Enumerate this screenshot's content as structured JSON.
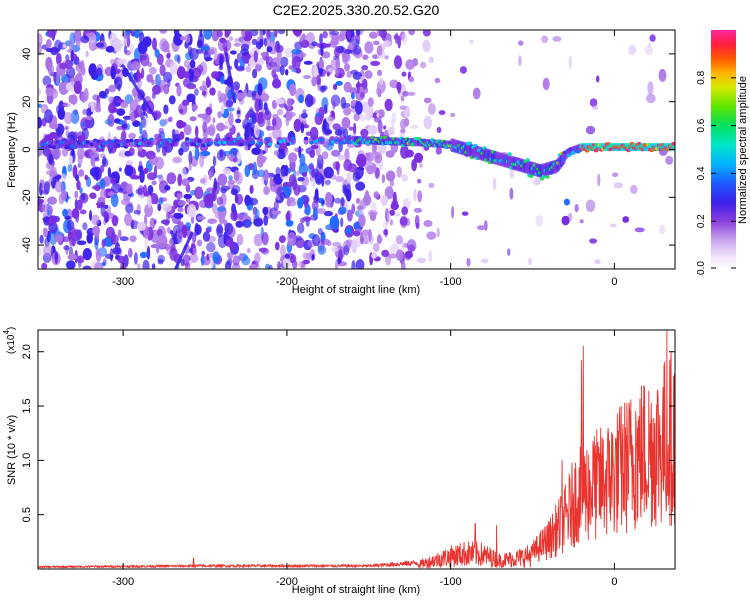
{
  "title": "C2E2.2025.330.20.52.G20",
  "chart_data": [
    {
      "type": "heatmap",
      "xlabel": "Height of straight line (km)",
      "ylabel": "Frequency (Hz)",
      "xlim": [
        -352,
        37
      ],
      "ylim": [
        -50,
        50
      ],
      "x_ticks": [
        -300,
        -200,
        -100,
        0
      ],
      "y_ticks": [
        -40,
        -20,
        0,
        20,
        40
      ],
      "colorbar": {
        "label": "Normalized spectral amplitude",
        "range": [
          0.0,
          1.0
        ],
        "ticks": [
          "0.0",
          "0.2",
          "0.4",
          "0.6",
          "0.8"
        ],
        "colormap": "rainbow"
      },
      "ridge": {
        "description_points_x": [
          -350,
          -160,
          -120,
          -100,
          -80,
          -60,
          -45,
          -35,
          -28,
          -20,
          0,
          37
        ],
        "description_points_freq": [
          2,
          4,
          3,
          2,
          -2,
          -6,
          -9,
          -7,
          -1,
          1,
          1,
          1
        ]
      }
    },
    {
      "type": "line",
      "xlabel": "Height of straight line (km)",
      "ylabel": "SNR (10 * v/v)",
      "y_multiplier": "(x10",
      "y_multiplier_exp": "4",
      "y_multiplier_close": ")",
      "xlim": [
        -352,
        37
      ],
      "ylim": [
        0,
        2.2
      ],
      "x_ticks": [
        -300,
        -200,
        -100,
        0
      ],
      "y_ticks": [
        0.5,
        1.0,
        1.5,
        2.0
      ],
      "y_tick_labels": [
        "0.5",
        "1.0",
        "1.5",
        "2.0"
      ],
      "series": [
        {
          "color": "#e8332e",
          "envelope_x": [
            -352,
            -250,
            -150,
            -120,
            -110,
            -100,
            -90,
            -80,
            -70,
            -60,
            -50,
            -40,
            -30,
            -22,
            -15,
            -5,
            5,
            15,
            25,
            30,
            37
          ],
          "envelope_y": [
            0.02,
            0.03,
            0.03,
            0.06,
            0.12,
            0.18,
            0.22,
            0.2,
            0.12,
            0.15,
            0.2,
            0.35,
            0.6,
            0.9,
            0.95,
            1.05,
            1.2,
            1.35,
            1.45,
            1.5,
            1.6
          ],
          "spikes": [
            {
              "x": -257,
              "y": 0.1
            },
            {
              "x": -85,
              "y": 0.42
            },
            {
              "x": -72,
              "y": 0.4
            },
            {
              "x": -32,
              "y": 1.0
            },
            {
              "x": -20,
              "y": 1.92
            },
            {
              "x": -19,
              "y": 2.05
            },
            {
              "x": -13,
              "y": 1.12
            },
            {
              "x": -3,
              "y": 1.18
            },
            {
              "x": 13,
              "y": 1.45
            },
            {
              "x": 32,
              "y": 2.2
            }
          ]
        }
      ]
    }
  ]
}
